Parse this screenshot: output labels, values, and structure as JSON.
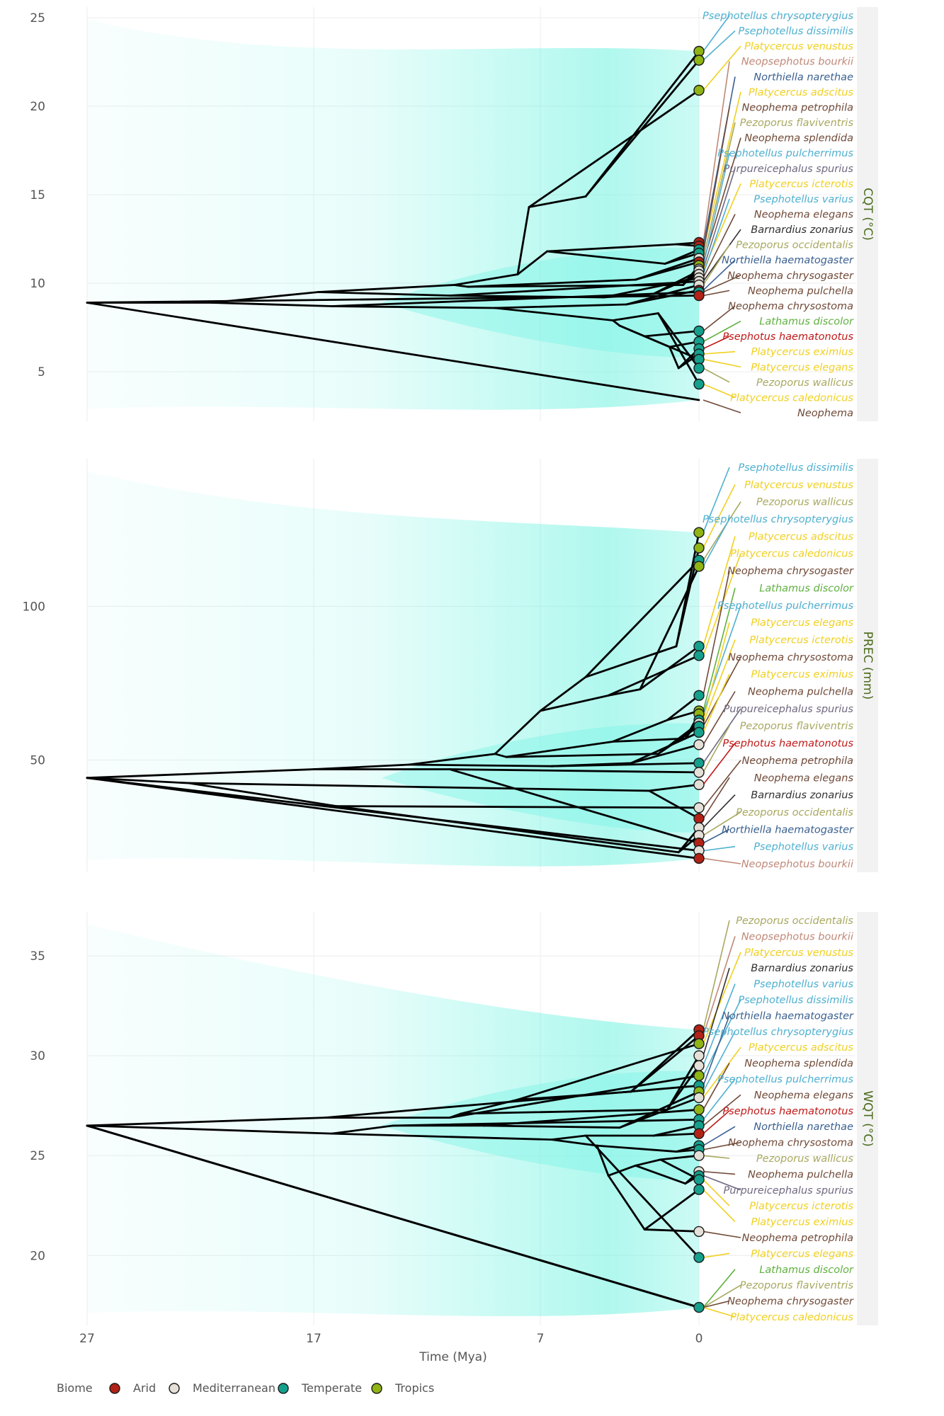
{
  "x_axis": {
    "title": "Time (Mya)",
    "ticks": [
      "27",
      "17",
      "7",
      "0"
    ]
  },
  "legend": {
    "title": "Biome",
    "items": [
      {
        "name": "Arid",
        "color": "#b22216"
      },
      {
        "name": "Mediterranean",
        "color": "#e4e0d8"
      },
      {
        "name": "Temperate",
        "color": "#14a08c"
      },
      {
        "name": "Tropics",
        "color": "#8fb414"
      }
    ]
  },
  "genus_colors": {
    "Psephotellus": "#4fb0d0",
    "Platycercus": "#f0d020",
    "Neopsephotus": "#c08878",
    "Northiella": "#3a6090",
    "Neophema": "#704a38",
    "Pezoporus": "#a8a860",
    "Purpureicephalus": "#706880",
    "Barnardius": "#303030",
    "Lathamus": "#60b040",
    "Psephotus": "#c01818"
  },
  "chart_data": [
    {
      "type": "phenogram",
      "panel_label": "CQT (°C)",
      "ylim": [
        2.2,
        25.6
      ],
      "yticks": [
        5,
        10,
        15,
        20,
        25
      ],
      "root_value": 8.9,
      "internal_nodes": [
        {
          "t": 21.5,
          "v": 8.9
        },
        {
          "t": 16.8,
          "v": 9.5
        },
        {
          "t": 16.2,
          "v": 8.7
        },
        {
          "t": 10.8,
          "v": 9.9
        },
        {
          "t": 7.5,
          "v": 14.3
        },
        {
          "t": 5.0,
          "v": 14.9
        },
        {
          "t": 11.0,
          "v": 9.3
        },
        {
          "t": 10.2,
          "v": 9.8
        },
        {
          "t": 9.0,
          "v": 8.6
        },
        {
          "t": 8.0,
          "v": 10.5
        },
        {
          "t": 6.7,
          "v": 11.8
        },
        {
          "t": 4.2,
          "v": 9.2
        },
        {
          "t": 3.8,
          "v": 7.9
        },
        {
          "t": 3.5,
          "v": 7.6
        },
        {
          "t": 3.2,
          "v": 8.8
        },
        {
          "t": 2.8,
          "v": 10.2
        },
        {
          "t": 2.4,
          "v": 7.0
        },
        {
          "t": 2.0,
          "v": 9.4
        },
        {
          "t": 1.8,
          "v": 8.3
        },
        {
          "t": 1.5,
          "v": 11.1
        },
        {
          "t": 1.3,
          "v": 6.4
        },
        {
          "t": 1.0,
          "v": 12.2
        },
        {
          "t": 0.9,
          "v": 5.2
        },
        {
          "t": 0.7,
          "v": 9.9
        }
      ],
      "tips": [
        {
          "species": "Psephotellus chrysopterygius",
          "value": 23.1,
          "biome": "Tropics"
        },
        {
          "species": "Psephotellus dissimilis",
          "value": 22.6,
          "biome": "Tropics"
        },
        {
          "species": "Platycercus venustus",
          "value": 20.9,
          "biome": "Tropics"
        },
        {
          "species": "Neopsephotus bourkii",
          "value": 12.3,
          "biome": "Arid"
        },
        {
          "species": "Northiella narethae",
          "value": 12.1,
          "biome": "Arid"
        },
        {
          "species": "Platycercus adscitus",
          "value": 11.9,
          "biome": "Temperate"
        },
        {
          "species": "Neophema petrophila",
          "value": 11.7,
          "biome": "Temperate"
        },
        {
          "species": "Pezoporus flaviventris",
          "value": 11.4,
          "biome": "Mediterranean"
        },
        {
          "species": "Neophema splendida",
          "value": 11.2,
          "biome": "Arid"
        },
        {
          "species": "Psephotellus pulcherrimus",
          "value": 11.0,
          "biome": "Tropics"
        },
        {
          "species": "Purpureicephalus spurius",
          "value": 10.8,
          "biome": "Mediterranean"
        },
        {
          "species": "Platycercus icterotis",
          "value": 10.7,
          "biome": "Mediterranean"
        },
        {
          "species": "Psephotellus varius",
          "value": 10.5,
          "biome": "Mediterranean"
        },
        {
          "species": "Neophema elegans",
          "value": 10.3,
          "biome": "Mediterranean"
        },
        {
          "species": "Barnardius zonarius",
          "value": 10.1,
          "biome": "Mediterranean"
        },
        {
          "species": "Pezoporus occidentalis",
          "value": 9.9,
          "biome": "Mediterranean"
        },
        {
          "species": "Northiella haematogaster",
          "value": 9.6,
          "biome": "Arid"
        },
        {
          "species": "Neophema chrysogaster",
          "value": 9.5,
          "biome": "Temperate"
        },
        {
          "species": "Neophema pulchella",
          "value": 9.3,
          "biome": "Arid"
        },
        {
          "species": "Neophema chrysostoma",
          "value": 7.3,
          "biome": "Temperate"
        },
        {
          "species": "Lathamus discolor",
          "value": 6.7,
          "biome": "Temperate"
        },
        {
          "species": "Psephotus haematonotus",
          "value": 6.3,
          "biome": "Temperate"
        },
        {
          "species": "Platycercus eximius",
          "value": 6.0,
          "biome": "Temperate"
        },
        {
          "species": "Platycercus elegans",
          "value": 5.7,
          "biome": "Temperate"
        },
        {
          "species": "Pezoporus wallicus",
          "value": 5.2,
          "biome": "Temperate"
        },
        {
          "species": "Platycercus caledonicus",
          "value": 4.3,
          "biome": "Temperate"
        },
        {
          "species": "Neophema",
          "value": 3.4,
          "biome": "Temperate",
          "hidden": true
        }
      ]
    },
    {
      "type": "phenogram",
      "panel_label": "PREC (mm)",
      "ylim": [
        13.5,
        148
      ],
      "yticks": [
        50,
        100
      ],
      "root_value": 44.2,
      "internal_nodes": [
        {
          "t": 22.5,
          "v": 42.5
        },
        {
          "t": 17.0,
          "v": 47.0
        },
        {
          "t": 16.0,
          "v": 35.0
        },
        {
          "t": 12.8,
          "v": 48.5
        },
        {
          "t": 11.0,
          "v": 47.0
        },
        {
          "t": 9.0,
          "v": 52.0
        },
        {
          "t": 8.5,
          "v": 51.0
        },
        {
          "t": 7.0,
          "v": 66.0
        },
        {
          "t": 6.5,
          "v": 48.0
        },
        {
          "t": 5.0,
          "v": 77.0
        },
        {
          "t": 4.0,
          "v": 71.0
        },
        {
          "t": 3.8,
          "v": 56.0
        },
        {
          "t": 3.0,
          "v": 49.0
        },
        {
          "t": 2.6,
          "v": 73.0
        },
        {
          "t": 2.2,
          "v": 40.0
        },
        {
          "t": 1.8,
          "v": 52.0
        },
        {
          "t": 1.4,
          "v": 63.0
        },
        {
          "t": 1.0,
          "v": 87.0
        },
        {
          "t": 0.9,
          "v": 20.0
        },
        {
          "t": 0.6,
          "v": 57.0
        }
      ],
      "tips": [
        {
          "species": "Psephotellus dissimilis",
          "value": 124.0,
          "biome": "Tropics"
        },
        {
          "species": "Platycercus venustus",
          "value": 119.0,
          "biome": "Tropics"
        },
        {
          "species": "Pezoporus wallicus",
          "value": 115.0,
          "biome": "Temperate"
        },
        {
          "species": "Psephotellus chrysopterygius",
          "value": 113.0,
          "biome": "Tropics"
        },
        {
          "species": "Platycercus adscitus",
          "value": 87.0,
          "biome": "Temperate"
        },
        {
          "species": "Platycercus caledonicus",
          "value": 84.0,
          "biome": "Temperate"
        },
        {
          "species": "Neophema chrysogaster",
          "value": 71.0,
          "biome": "Temperate"
        },
        {
          "species": "Lathamus discolor",
          "value": 66.0,
          "biome": "Tropics"
        },
        {
          "species": "Psephotellus pulcherrimus",
          "value": 65.0,
          "biome": "Tropics"
        },
        {
          "species": "Platycercus elegans",
          "value": 63.0,
          "biome": "Temperate"
        },
        {
          "species": "Platycercus icterotis",
          "value": 62.0,
          "biome": "Mediterranean"
        },
        {
          "species": "Neophema chrysostoma",
          "value": 61.0,
          "biome": "Temperate"
        },
        {
          "species": "Platycercus eximius",
          "value": 59.0,
          "biome": "Temperate"
        },
        {
          "species": "Neophema pulchella",
          "value": 55.0,
          "biome": "Mediterranean"
        },
        {
          "species": "Purpureicephalus spurius",
          "value": 49.0,
          "biome": "Temperate"
        },
        {
          "species": "Pezoporus flaviventris",
          "value": 46.0,
          "biome": "Mediterranean"
        },
        {
          "species": "Psephotus haematonotus",
          "value": 42.0,
          "biome": "Mediterranean"
        },
        {
          "species": "Neophema petrophila",
          "value": 34.5,
          "biome": "Mediterranean"
        },
        {
          "species": "Neophema elegans",
          "value": 31.0,
          "biome": "Arid"
        },
        {
          "species": "Barnardius zonarius",
          "value": 28.0,
          "biome": "Mediterranean"
        },
        {
          "species": "Pezoporus occidentalis",
          "value": 25.5,
          "biome": "Mediterranean"
        },
        {
          "species": "Northiella haematogaster",
          "value": 23.0,
          "biome": "Arid"
        },
        {
          "species": "Psephotellus varius",
          "value": 20.5,
          "biome": "Mediterranean"
        },
        {
          "species": "Neopsephotus bourkii",
          "value": 18.0,
          "biome": "Arid"
        }
      ]
    },
    {
      "type": "phenogram",
      "panel_label": "WQT (°C)",
      "ylim": [
        16.5,
        37.2
      ],
      "yticks": [
        20,
        25,
        30,
        35
      ],
      "root_value": 26.5,
      "internal_nodes": [
        {
          "t": 16.5,
          "v": 26.9
        },
        {
          "t": 16.2,
          "v": 26.1
        },
        {
          "t": 13.5,
          "v": 26.5
        },
        {
          "t": 11.0,
          "v": 26.9
        },
        {
          "t": 10.5,
          "v": 27.1
        },
        {
          "t": 9.5,
          "v": 26.5
        },
        {
          "t": 8.0,
          "v": 27.8
        },
        {
          "t": 6.5,
          "v": 25.8
        },
        {
          "t": 5.0,
          "v": 26.0
        },
        {
          "t": 4.5,
          "v": 25.5
        },
        {
          "t": 4.0,
          "v": 24.0
        },
        {
          "t": 3.5,
          "v": 26.4
        },
        {
          "t": 3.0,
          "v": 28.2
        },
        {
          "t": 2.8,
          "v": 24.5
        },
        {
          "t": 2.4,
          "v": 21.3
        },
        {
          "t": 2.0,
          "v": 26.0
        },
        {
          "t": 1.7,
          "v": 24.8
        },
        {
          "t": 1.4,
          "v": 27.3
        },
        {
          "t": 1.0,
          "v": 25.2
        },
        {
          "t": 0.6,
          "v": 23.6
        }
      ],
      "tips": [
        {
          "species": "Pezoporus occidentalis",
          "value": 31.3,
          "biome": "Arid"
        },
        {
          "species": "Neopsephotus bourkii",
          "value": 31.0,
          "biome": "Arid"
        },
        {
          "species": "Platycercus venustus",
          "value": 30.6,
          "biome": "Tropics"
        },
        {
          "species": "Barnardius zonarius",
          "value": 30.0,
          "biome": "Mediterranean"
        },
        {
          "species": "Psephotellus varius",
          "value": 29.5,
          "biome": "Mediterranean"
        },
        {
          "species": "Psephotellus dissimilis",
          "value": 29.0,
          "biome": "Tropics"
        },
        {
          "species": "Northiella haematogaster",
          "value": 28.5,
          "biome": "Temperate"
        },
        {
          "species": "Psephotellus chrysopterygius",
          "value": 28.2,
          "biome": "Tropics"
        },
        {
          "species": "Platycercus adscitus",
          "value": 27.9,
          "biome": "Mediterranean"
        },
        {
          "species": "Neophema splendida",
          "value": 27.3,
          "biome": "Tropics"
        },
        {
          "species": "Psephotellus pulcherrimus",
          "value": 26.8,
          "biome": "Temperate"
        },
        {
          "species": "Neophema elegans",
          "value": 26.5,
          "biome": "Temperate"
        },
        {
          "species": "Psephotus haematonotus",
          "value": 26.1,
          "biome": "Arid"
        },
        {
          "species": "Northiella narethae",
          "value": 25.5,
          "biome": "Temperate"
        },
        {
          "species": "Neophema chrysostoma",
          "value": 25.3,
          "biome": "Temperate"
        },
        {
          "species": "Pezoporus wallicus",
          "value": 25.0,
          "biome": "Mediterranean"
        },
        {
          "species": "Neophema pulchella",
          "value": 24.2,
          "biome": "Mediterranean"
        },
        {
          "species": "Purpureicephalus spurius",
          "value": 24.0,
          "biome": "Temperate"
        },
        {
          "species": "Platycercus icterotis",
          "value": 23.8,
          "biome": "Temperate"
        },
        {
          "species": "Platycercus eximius",
          "value": 23.3,
          "biome": "Temperate"
        },
        {
          "species": "Neophema petrophila",
          "value": 21.2,
          "biome": "Mediterranean"
        },
        {
          "species": "Platycercus elegans",
          "value": 19.9,
          "biome": "Temperate"
        },
        {
          "species": "Lathamus discolor",
          "value": 17.4,
          "biome": "Temperate"
        },
        {
          "species": "Pezoporus flaviventris",
          "value": 17.4,
          "biome": "Temperate",
          "hidden": true
        },
        {
          "species": "Neophema chrysogaster",
          "value": 17.4,
          "biome": "Temperate",
          "hidden": true
        },
        {
          "species": "Platycercus caledonicus",
          "value": 17.4,
          "biome": "Temperate",
          "hidden": true
        }
      ],
      "label_order": [
        "Pezoporus occidentalis",
        "Neopsephotus bourkii",
        "Platycercus venustus",
        "Barnardius zonarius",
        "Psephotellus varius",
        "Psephotellus dissimilis",
        "Northiella haematogaster",
        "Psephotellus chrysopterygius",
        "Platycercus adscitus",
        "Neophema splendida",
        "Psephotellus pulcherrimus",
        "Neophema elegans",
        "Psephotus haematonotus",
        "Northiella narethae",
        "Neophema chrysostoma",
        "Pezoporus wallicus",
        "Neophema pulchella",
        "Purpureicephalus spurius",
        "Platycercus icterotis",
        "Platycercus eximius",
        "Neophema petrophila",
        "Platycercus elegans",
        "Lathamus discolor",
        "Pezoporus flaviventris",
        "Neophema chrysogaster",
        "Platycercus caledonicus"
      ]
    }
  ]
}
